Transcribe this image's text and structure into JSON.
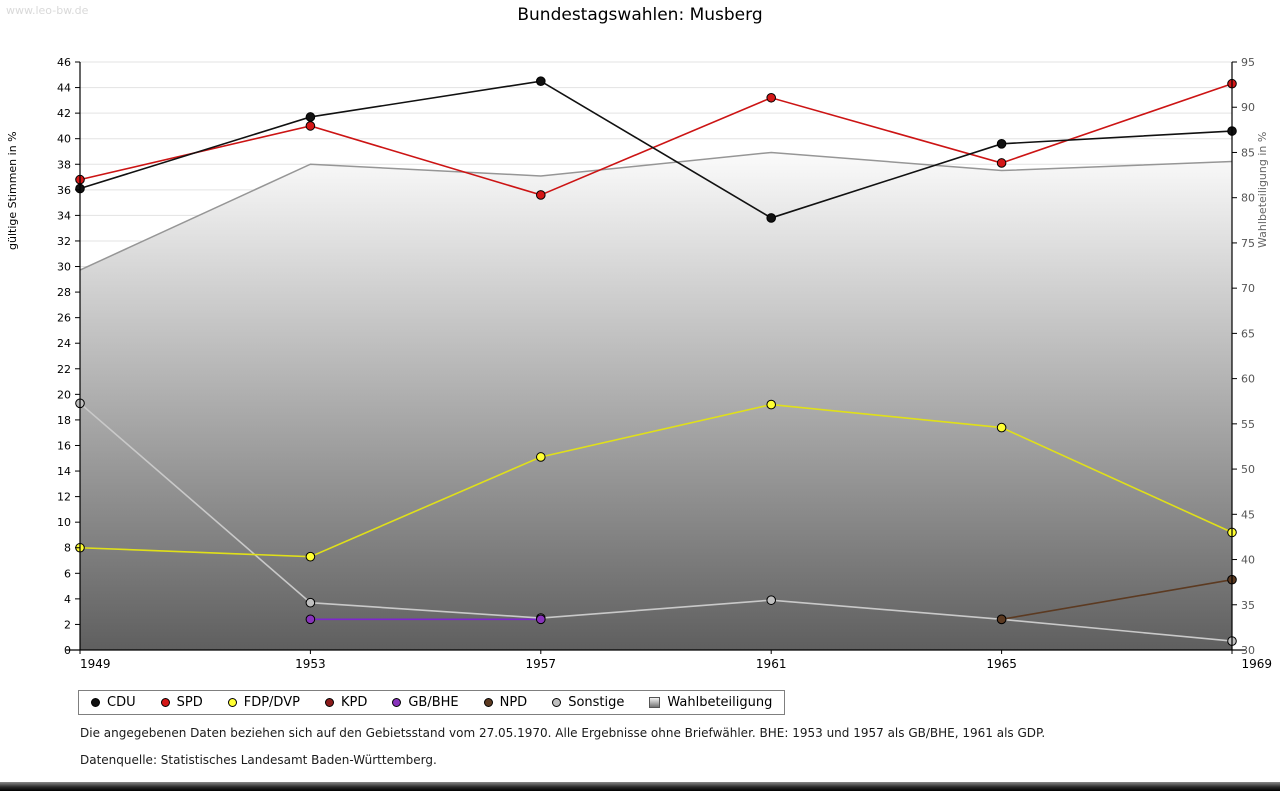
{
  "page": {
    "watermark": "www.leo-bw.de",
    "title": "Bundestagswahlen: Musberg",
    "footnote1": "Die angegebenen Daten beziehen sich auf den Gebietsstand vom 27.05.1970. Alle Ergebnisse ohne Briefwähler. BHE: 1953 und 1957 als GB/BHE, 1961 als GDP.",
    "footnote2": "Datenquelle: Statistisches Landesamt Baden-Württemberg."
  },
  "chart_data": {
    "type": "line",
    "title": "Bundestagswahlen: Musberg",
    "x": [
      "1949",
      "1953",
      "1957",
      "1961",
      "1965",
      "1969"
    ],
    "left_axis": {
      "label": "gültige Stimmen in %",
      "min": 0,
      "max": 46,
      "tick_step": 2
    },
    "right_axis": {
      "label": "Wahlbeteiligung in %",
      "min": 30,
      "max": 95,
      "tick_step": 5
    },
    "grid": true,
    "legend_position": "bottom",
    "series": [
      {
        "name": "CDU",
        "style": "line",
        "axis": "left",
        "color": "#111111",
        "fill": "#111111",
        "values": [
          36.1,
          41.7,
          44.5,
          33.8,
          39.6,
          40.6
        ]
      },
      {
        "name": "SPD",
        "style": "line",
        "axis": "left",
        "color": "#cc1414",
        "fill": "#d41717",
        "values": [
          36.8,
          41.0,
          35.6,
          43.2,
          38.1,
          44.3
        ]
      },
      {
        "name": "FDP/DVP",
        "style": "line",
        "axis": "left",
        "color": "#e0e019",
        "fill": "#ffff33",
        "values": [
          8.0,
          7.3,
          15.1,
          19.2,
          17.4,
          9.2
        ]
      },
      {
        "name": "KPD",
        "style": "line",
        "axis": "left",
        "color": "#8b1a1a",
        "fill": "#8b1a1a",
        "values": [
          null,
          null,
          null,
          null,
          null,
          null
        ]
      },
      {
        "name": "GB/BHE",
        "style": "line",
        "axis": "left",
        "color": "#7d26cd",
        "fill": "#8833bb",
        "values": [
          null,
          2.4,
          2.4,
          null,
          null,
          null
        ]
      },
      {
        "name": "NPD",
        "style": "line",
        "axis": "left",
        "color": "#5c3a21",
        "fill": "#5c3a21",
        "values": [
          null,
          null,
          null,
          null,
          2.4,
          5.5
        ]
      },
      {
        "name": "Sonstige",
        "style": "line",
        "axis": "left",
        "color": "#c9c9c9",
        "fill": "#c0c0c0",
        "values": [
          19.3,
          3.7,
          2.5,
          3.9,
          2.4,
          0.7
        ]
      },
      {
        "name": "Wahlbeteiligung",
        "style": "area",
        "axis": "right",
        "color": "#969696",
        "fill": "gradient",
        "values": [
          72.0,
          83.7,
          82.4,
          85.0,
          83.0,
          84.0
        ]
      }
    ]
  }
}
